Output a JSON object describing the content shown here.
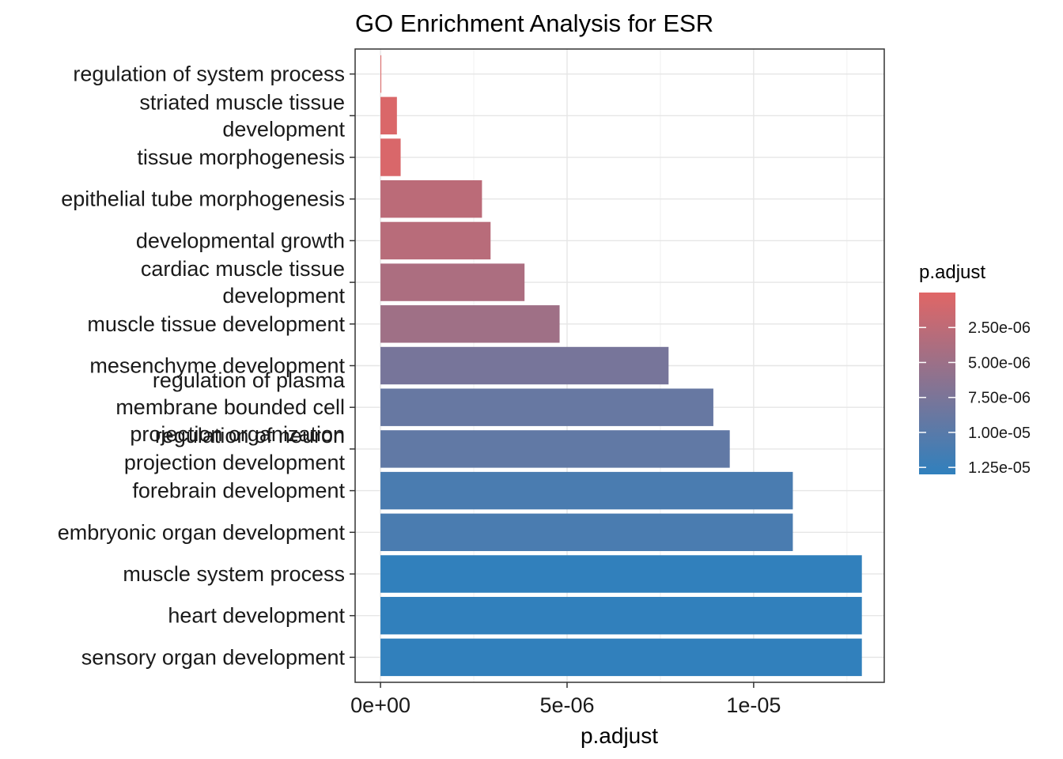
{
  "chart_data": {
    "type": "bar",
    "orientation": "horizontal",
    "title": "GO Enrichment Analysis for ESR",
    "xlabel": "p.adjust",
    "ylabel": "",
    "xlim": [
      -6.8e-07,
      1.35e-05
    ],
    "x_ticks": [
      {
        "value": 0,
        "label": "0e+00"
      },
      {
        "value": 5e-06,
        "label": "5e-06"
      },
      {
        "value": 1e-05,
        "label": "1e-05"
      }
    ],
    "categories": [
      [
        "regulation of system process"
      ],
      [
        "striated muscle tissue",
        "development"
      ],
      [
        "tissue morphogenesis"
      ],
      [
        "epithelial tube morphogenesis"
      ],
      [
        "developmental growth"
      ],
      [
        "cardiac muscle tissue",
        "development"
      ],
      [
        "muscle tissue development"
      ],
      [
        "mesenchyme development"
      ],
      [
        "regulation of plasma",
        "membrane bounded cell",
        "projection organization"
      ],
      [
        "regulation of neuron",
        "projection development"
      ],
      [
        "forebrain development"
      ],
      [
        "embryonic organ development"
      ],
      [
        "muscle system process"
      ],
      [
        "heart development"
      ],
      [
        "sensory organ development"
      ]
    ],
    "values": [
      2e-08,
      4.4e-07,
      5.4e-07,
      2.72e-06,
      2.95e-06,
      3.86e-06,
      4.8e-06,
      7.72e-06,
      8.92e-06,
      9.36e-06,
      1.105e-05,
      1.105e-05,
      1.29e-05,
      1.29e-05,
      1.29e-05
    ],
    "color_by": "p.adjust",
    "grid": true,
    "legend": {
      "title": "p.adjust",
      "placement": "right",
      "low_color": "#E06666",
      "high_color": "#3080BD",
      "range": [
        0,
        1.3e-05
      ],
      "ticks": [
        {
          "value": 2.5e-06,
          "label": "2.50e-06"
        },
        {
          "value": 5e-06,
          "label": "5.00e-06"
        },
        {
          "value": 7.5e-06,
          "label": "7.50e-06"
        },
        {
          "value": 1e-05,
          "label": "1.00e-05"
        },
        {
          "value": 1.25e-05,
          "label": "1.25e-05"
        }
      ]
    }
  }
}
